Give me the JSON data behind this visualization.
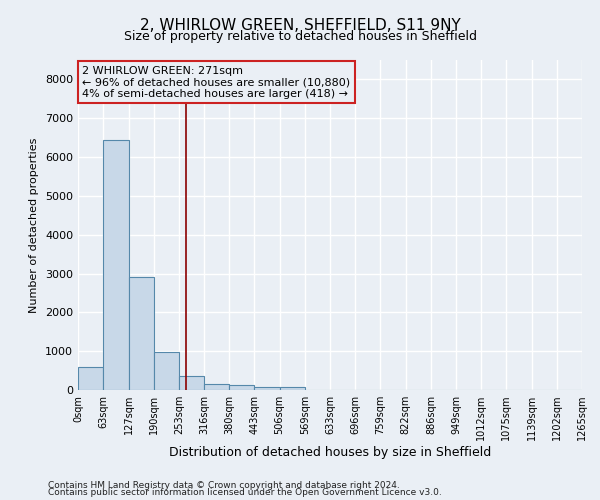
{
  "title": "2, WHIRLOW GREEN, SHEFFIELD, S11 9NY",
  "subtitle": "Size of property relative to detached houses in Sheffield",
  "xlabel": "Distribution of detached houses by size in Sheffield",
  "ylabel": "Number of detached properties",
  "property_size": 271,
  "bar_edges": [
    0,
    63,
    127,
    190,
    253,
    316,
    380,
    443,
    506,
    569,
    633,
    696,
    759,
    822,
    886,
    949,
    1012,
    1075,
    1139,
    1202,
    1265
  ],
  "bar_heights": [
    580,
    6430,
    2920,
    990,
    360,
    155,
    120,
    90,
    70,
    0,
    0,
    0,
    0,
    0,
    0,
    0,
    0,
    0,
    0,
    0
  ],
  "bar_color": "#c8d8e8",
  "bar_edge_color": "#5588aa",
  "red_line_color": "#8b0000",
  "annotation_box_color": "#cc2222",
  "annotation_line1": "2 WHIRLOW GREEN: 271sqm",
  "annotation_line2": "← 96% of detached houses are smaller (10,880)",
  "annotation_line3": "4% of semi-detached houses are larger (418) →",
  "ylim": [
    0,
    8500
  ],
  "yticks": [
    0,
    1000,
    2000,
    3000,
    4000,
    5000,
    6000,
    7000,
    8000
  ],
  "xtick_labels": [
    "0sqm",
    "63sqm",
    "127sqm",
    "190sqm",
    "253sqm",
    "316sqm",
    "380sqm",
    "443sqm",
    "506sqm",
    "569sqm",
    "633sqm",
    "696sqm",
    "759sqm",
    "822sqm",
    "886sqm",
    "949sqm",
    "1012sqm",
    "1075sqm",
    "1139sqm",
    "1202sqm",
    "1265sqm"
  ],
  "footer_line1": "Contains HM Land Registry data © Crown copyright and database right 2024.",
  "footer_line2": "Contains public sector information licensed under the Open Government Licence v3.0.",
  "background_color": "#eaeff5",
  "grid_color": "#ffffff"
}
